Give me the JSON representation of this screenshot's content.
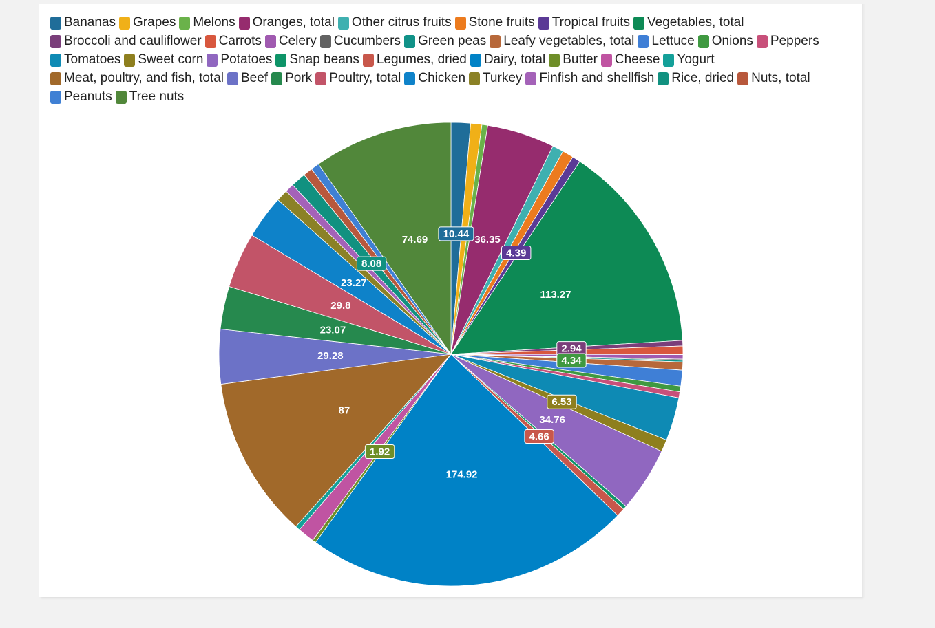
{
  "chart_data": {
    "type": "pie",
    "legend_position": "top",
    "categories": [
      "Bananas",
      "Grapes",
      "Melons",
      "Oranges, total",
      "Other citrus fruits",
      "Stone fruits",
      "Tropical fruits",
      "Vegetables, total",
      "Broccoli and cauliflower",
      "Carrots",
      "Celery",
      "Cucumbers",
      "Green peas",
      "Leafy vegetables, total",
      "Lettuce",
      "Onions",
      "Peppers",
      "Tomatoes",
      "Sweet corn",
      "Potatoes",
      "Snap beans",
      "Legumes, dried",
      "Dairy, total",
      "Butter",
      "Cheese",
      "Yogurt",
      "Meat, poultry, and fish, total",
      "Beef",
      "Pork",
      "Poultry, total",
      "Chicken",
      "Turkey",
      "Finfish and shellfish",
      "Rice, dried",
      "Nuts, total",
      "Peanuts",
      "Tree nuts"
    ],
    "values": [
      10.44,
      6.0,
      3.1,
      36.35,
      6.0,
      6.0,
      4.39,
      113.27,
      2.94,
      4.6,
      2.4,
      0.6,
      0.9,
      4.34,
      8.5,
      3.1,
      3.2,
      23.3,
      6.53,
      34.76,
      2.0,
      4.66,
      174.92,
      1.92,
      9.0,
      2.5,
      87,
      29.28,
      23.07,
      29.8,
      23.27,
      6.3,
      4.8,
      8.08,
      5.0,
      4.5,
      74.69
    ],
    "colors": [
      "#1f6d99",
      "#f0b018",
      "#6ab24a",
      "#962c6e",
      "#3fb0b0",
      "#ec7b1e",
      "#5b3a96",
      "#0d8a55",
      "#7a3e7a",
      "#d8573e",
      "#a05ab0",
      "#626262",
      "#119288",
      "#b7683a",
      "#3f7fd6",
      "#3f9941",
      "#c8507a",
      "#0e8ab4",
      "#8e7f1e",
      "#9067c0",
      "#0e9468",
      "#c8574b",
      "#0082c6",
      "#6e8e28",
      "#c054a2",
      "#14a099",
      "#a1692a",
      "#6c72c7",
      "#26894e",
      "#c25468",
      "#0e82c9",
      "#8b8126",
      "#a462b8",
      "#119180",
      "#b8583c",
      "#3f80d4",
      "#51873a"
    ],
    "data_labels": [
      {
        "index": 0,
        "text": "10.44",
        "box_color": "#1f6d99"
      },
      {
        "index": 3,
        "text": "36.35",
        "box_color": null
      },
      {
        "index": 6,
        "text": "4.39",
        "box_color": "#5b3a96"
      },
      {
        "index": 7,
        "text": "113.27",
        "box_color": null
      },
      {
        "index": 8,
        "text": "2.94",
        "box_color": "#7a3e7a"
      },
      {
        "index": 13,
        "text": "4.34",
        "box_color": "#3f9941"
      },
      {
        "index": 18,
        "text": "6.53",
        "box_color": "#8e7f1e"
      },
      {
        "index": 19,
        "text": "34.76",
        "box_color": null
      },
      {
        "index": 21,
        "text": "4.66",
        "box_color": "#c8574b"
      },
      {
        "index": 22,
        "text": "174.92",
        "box_color": null
      },
      {
        "index": 23,
        "text": "1.92",
        "box_color": "#6e8e28"
      },
      {
        "index": 26,
        "text": "87",
        "box_color": null
      },
      {
        "index": 27,
        "text": "29.28",
        "box_color": null
      },
      {
        "index": 28,
        "text": "23.07",
        "box_color": null
      },
      {
        "index": 29,
        "text": "29.8",
        "box_color": null
      },
      {
        "index": 30,
        "text": "23.27",
        "box_color": null
      },
      {
        "index": 33,
        "text": "8.08",
        "box_color": "#119180"
      },
      {
        "index": 36,
        "text": "74.69",
        "box_color": null
      }
    ],
    "title": "",
    "xlabel": "",
    "ylabel": ""
  }
}
